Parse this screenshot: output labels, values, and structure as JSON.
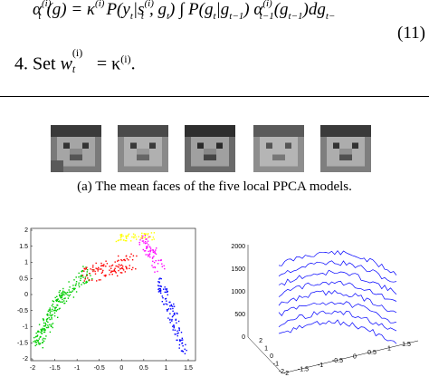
{
  "equation": {
    "lhs": "α",
    "lhs_sup_sub": "t",
    "lhs_arg": "(g) = κ",
    "lhs_kappa_sup": "(i)",
    "body": "P(y",
    "body2": "|s",
    "body2_sup": "(i)",
    "body3": ", g",
    "body4": ") ∫ P(g",
    "body5": "|g",
    "body6": ") α",
    "body6_sup": "(i)",
    "body7": "(g",
    "body8": ")dg",
    "number": "(11)"
  },
  "step": {
    "label": "4.  Set ",
    "w": "w",
    "w_sup": "(i)",
    "w_sub": "t",
    "eq": " = κ",
    "kappa_sup": "(i)",
    "end": "."
  },
  "caption": "(a)  The mean faces of the five local PPCA models.",
  "left_plot": {
    "x_ticks": [
      "-2",
      "-1.5",
      "-1",
      "-0.5",
      "0",
      "0.5",
      "1",
      "1.5"
    ],
    "y_ticks": [
      "2",
      "1.5",
      "1",
      "0.5",
      "0",
      "-0.5",
      "-1",
      "-1.5",
      "-2"
    ],
    "colors": [
      "#00cc00",
      "#ff0000",
      "#ffff00",
      "#ff00ff",
      "#0000ff"
    ]
  },
  "right_plot": {
    "z_ticks": [
      "2000",
      "1500",
      "1000",
      "500",
      "0"
    ],
    "x_ticks": [
      "-2",
      "-1.5",
      "-1",
      "-0.5",
      "0",
      "0.5",
      "1",
      "1.5"
    ],
    "y_ticks": [
      "2",
      "1",
      "0",
      "-1",
      "-2"
    ],
    "line_color": "#0000ff"
  }
}
